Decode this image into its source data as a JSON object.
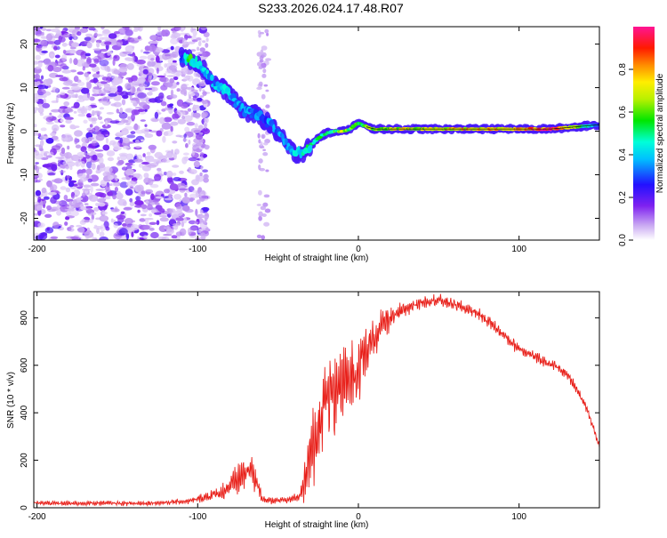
{
  "title": "S233.2026.024.17.48.R07",
  "chart_data": [
    {
      "type": "heatmap",
      "name": "spectrogram",
      "xlabel": "Height of straight line (km)",
      "ylabel": "Frequency (Hz)",
      "xlim": [
        -202,
        150
      ],
      "ylim": [
        -25,
        24
      ],
      "xticks": [
        -200,
        -100,
        0,
        100
      ],
      "yticks": [
        20,
        10,
        0,
        -10,
        -20
      ],
      "colorbar": {
        "label": "Normalized spectral amplitude",
        "range": [
          0,
          1
        ],
        "ticks": [
          0.0,
          0.2,
          0.4,
          0.6,
          0.8
        ]
      },
      "peak_frequency_ridge": {
        "x": [
          -110,
          -105,
          -100,
          -95,
          -90,
          -85,
          -80,
          -75,
          -70,
          -65,
          -60,
          -55,
          -50,
          -45,
          -40,
          -35,
          -30,
          -25,
          -20,
          -15,
          -10,
          -5,
          0,
          5,
          10,
          20,
          40,
          60,
          80,
          100,
          120,
          150
        ],
        "y": [
          17,
          16.5,
          16,
          13.5,
          11,
          10,
          8.5,
          6,
          4.5,
          4,
          3,
          1.5,
          -0.5,
          -3,
          -5,
          -5,
          -3.5,
          -1.5,
          -0.5,
          0,
          0,
          0.5,
          2,
          1,
          0.5,
          0.5,
          0.5,
          0.5,
          0.5,
          0.5,
          0.5,
          1.5
        ],
        "amplitude": [
          0.3,
          0.55,
          0.45,
          0.4,
          0.35,
          0.45,
          0.4,
          0.35,
          0.35,
          0.35,
          0.3,
          0.35,
          0.35,
          0.35,
          0.4,
          0.45,
          0.5,
          0.5,
          0.5,
          0.55,
          0.65,
          0.6,
          0.55,
          0.6,
          0.65,
          0.7,
          0.7,
          0.75,
          0.75,
          0.8,
          0.95,
          0.3
        ]
      },
      "noise_region_x": [
        -202,
        -100
      ]
    },
    {
      "type": "line",
      "name": "snr",
      "xlabel": "Height of straight line (km)",
      "ylabel": "SNR (10 * v/v)",
      "xlim": [
        -202,
        150
      ],
      "ylim": [
        0,
        910
      ],
      "xticks": [
        -200,
        -100,
        0,
        100
      ],
      "yticks": [
        0,
        200,
        400,
        600,
        800
      ],
      "series": [
        {
          "name": "SNR",
          "color": "#e8201a",
          "x": [
            -202,
            -180,
            -160,
            -140,
            -120,
            -105,
            -95,
            -85,
            -78,
            -72,
            -66,
            -60,
            -55,
            -48,
            -42,
            -36,
            -32,
            -28,
            -26,
            -22,
            -18,
            -14,
            -10,
            -6,
            -2,
            2,
            6,
            10,
            14,
            18,
            22,
            26,
            30,
            36,
            42,
            50,
            58,
            66,
            74,
            82,
            90,
            98,
            106,
            114,
            122,
            130,
            136,
            142,
            146,
            150
          ],
          "y": [
            20,
            18,
            20,
            18,
            22,
            28,
            45,
            65,
            100,
            140,
            160,
            40,
            30,
            35,
            35,
            50,
            150,
            250,
            300,
            420,
            460,
            480,
            520,
            540,
            570,
            620,
            670,
            720,
            760,
            790,
            800,
            820,
            840,
            860,
            870,
            875,
            860,
            840,
            820,
            780,
            730,
            680,
            650,
            620,
            600,
            560,
            500,
            420,
            340,
            260
          ],
          "oscillation_amplitude": [
            10,
            10,
            10,
            10,
            10,
            12,
            20,
            35,
            55,
            70,
            75,
            20,
            15,
            15,
            15,
            20,
            120,
            170,
            180,
            200,
            200,
            190,
            180,
            170,
            150,
            130,
            110,
            90,
            80,
            60,
            50,
            40,
            35,
            30,
            25,
            25,
            25,
            25,
            25,
            25,
            25,
            25,
            22,
            22,
            20,
            20,
            20,
            18,
            15,
            15
          ]
        }
      ]
    }
  ]
}
